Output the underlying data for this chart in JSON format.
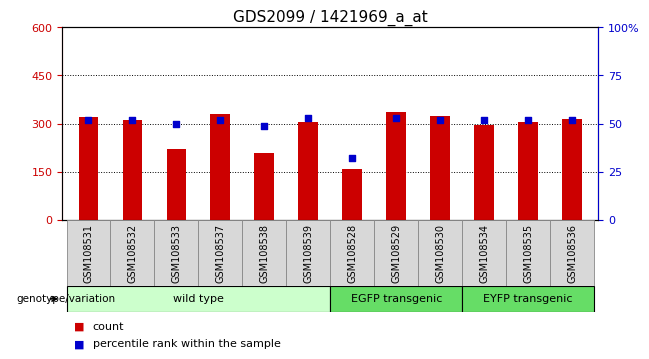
{
  "title": "GDS2099 / 1421969_a_at",
  "samples": [
    "GSM108531",
    "GSM108532",
    "GSM108533",
    "GSM108537",
    "GSM108538",
    "GSM108539",
    "GSM108528",
    "GSM108529",
    "GSM108530",
    "GSM108534",
    "GSM108535",
    "GSM108536"
  ],
  "counts": [
    320,
    310,
    220,
    330,
    210,
    305,
    160,
    335,
    325,
    295,
    305,
    315
  ],
  "percentiles": [
    52,
    52,
    50,
    52,
    49,
    53,
    32,
    53,
    52,
    52,
    52,
    52
  ],
  "ylim_left": [
    0,
    600
  ],
  "ylim_right": [
    0,
    100
  ],
  "yticks_left": [
    0,
    150,
    300,
    450,
    600
  ],
  "yticks_right": [
    0,
    25,
    50,
    75,
    100
  ],
  "bar_color": "#CC0000",
  "dot_color": "#0000CC",
  "bar_width": 0.45,
  "groups": [
    {
      "label": "wild type",
      "start": 0,
      "end": 6,
      "color": "#CCFFCC"
    },
    {
      "label": "EGFP transgenic",
      "start": 6,
      "end": 9,
      "color": "#66DD66"
    },
    {
      "label": "EYFP transgenic",
      "start": 9,
      "end": 12,
      "color": "#66DD66"
    }
  ],
  "xlabel_color": "#CC0000",
  "ylabel_right_color": "#0000CC",
  "title_fontsize": 11,
  "tick_fontsize": 8,
  "label_fontsize": 7,
  "legend_fontsize": 8,
  "genotype_label": "genotype/variation",
  "legend_count": "count",
  "legend_percentile": "percentile rank within the sample"
}
